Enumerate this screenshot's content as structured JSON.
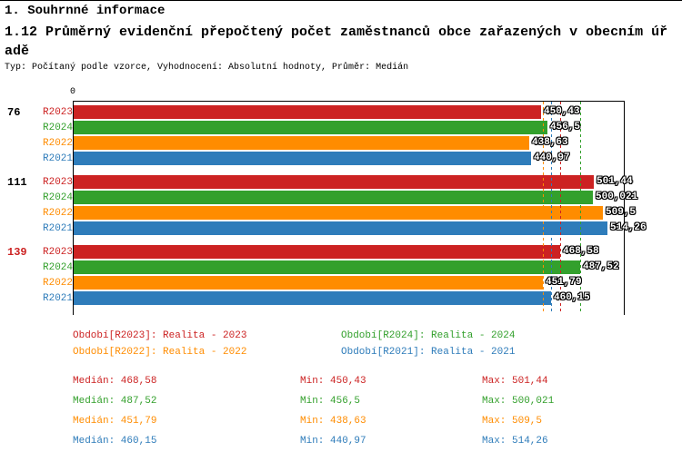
{
  "header": {
    "section_title": "1. Souhrnné informace",
    "indicator_title": "1.12 Průměrný evidenční přepočtený počet zaměstnanců obce zařazených v obecním úřadě",
    "meta": "Typ: Počítaný podle vzorce, Vyhodnocení: Absolutní hodnoty, Průměr: Medián"
  },
  "colors": {
    "R2023": "#cc2222",
    "R2024": "#33a02c",
    "R2022": "#ff8c00",
    "R2021": "#2e7cba",
    "axis": "#000000"
  },
  "chart_data": {
    "type": "bar",
    "orientation": "horizontal",
    "value_axis": {
      "origin_label": "0",
      "min": 0,
      "max": 530
    },
    "series_order": [
      "R2023",
      "R2024",
      "R2022",
      "R2021"
    ],
    "legend_position": "bottom",
    "groups": [
      {
        "label": "76",
        "label_color": "#000000",
        "bars": [
          {
            "series": "R2023",
            "value": 450.43,
            "label": "450,43"
          },
          {
            "series": "R2024",
            "value": 456.5,
            "label": "456,5"
          },
          {
            "series": "R2022",
            "value": 438.63,
            "label": "438,63"
          },
          {
            "series": "R2021",
            "value": 440.97,
            "label": "440,97"
          }
        ]
      },
      {
        "label": "111",
        "label_color": "#000000",
        "bars": [
          {
            "series": "R2023",
            "value": 501.44,
            "label": "501,44"
          },
          {
            "series": "R2024",
            "value": 500.021,
            "label": "500,021"
          },
          {
            "series": "R2022",
            "value": 509.5,
            "label": "509,5"
          },
          {
            "series": "R2021",
            "value": 514.26,
            "label": "514,26"
          }
        ]
      },
      {
        "label": "139",
        "label_color": "#cc2222",
        "bars": [
          {
            "series": "R2023",
            "value": 468.58,
            "label": "468,58"
          },
          {
            "series": "R2024",
            "value": 487.52,
            "label": "487,52"
          },
          {
            "series": "R2022",
            "value": 451.79,
            "label": "451,79"
          },
          {
            "series": "R2021",
            "value": 460.15,
            "label": "460,15"
          }
        ]
      }
    ],
    "median_lines": [
      {
        "series": "R2023",
        "value": 468.58
      },
      {
        "series": "R2024",
        "value": 487.52
      },
      {
        "series": "R2022",
        "value": 451.79
      },
      {
        "series": "R2021",
        "value": 460.15
      }
    ]
  },
  "legend": {
    "items": [
      {
        "series": "R2023",
        "label": "Období[R2023]: Realita - 2023",
        "col": 0,
        "row": 0
      },
      {
        "series": "R2024",
        "label": "Období[R2024]: Realita - 2024",
        "col": 1,
        "row": 0
      },
      {
        "series": "R2022",
        "label": "Období[R2022]: Realita - 2022",
        "col": 0,
        "row": 1
      },
      {
        "series": "R2021",
        "label": "Období[R2021]: Realita - 2021",
        "col": 1,
        "row": 1
      }
    ]
  },
  "stats": {
    "rows": [
      {
        "series": "R2023",
        "median": "Medián: 468,58",
        "min": "Min: 450,43",
        "max": "Max: 501,44"
      },
      {
        "series": "R2024",
        "median": "Medián: 487,52",
        "min": "Min: 456,5",
        "max": "Max: 500,021"
      },
      {
        "series": "R2022",
        "median": "Medián: 451,79",
        "min": "Min: 438,63",
        "max": "Max: 509,5"
      },
      {
        "series": "R2021",
        "median": "Medián: 460,15",
        "min": "Min: 440,97",
        "max": "Max: 514,26"
      }
    ]
  }
}
